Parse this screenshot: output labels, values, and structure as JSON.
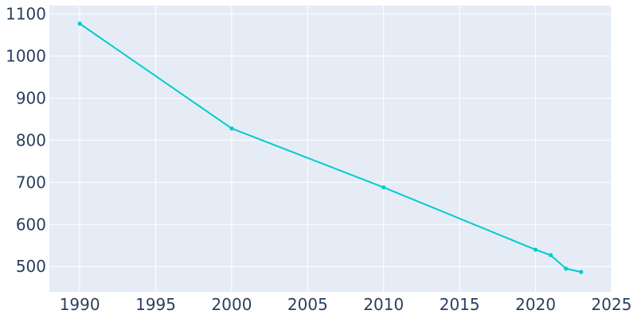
{
  "chart_data": {
    "type": "line",
    "title": "",
    "xlabel": "",
    "ylabel": "",
    "x": [
      1990,
      2000,
      2010,
      2020,
      2021,
      2022,
      2023
    ],
    "series": [
      {
        "values": [
          1077,
          828,
          688,
          540,
          527,
          495,
          487
        ],
        "color": "#00cccc"
      }
    ],
    "xlim": [
      1988,
      2025
    ],
    "ylim": [
      440,
      1120
    ],
    "x_ticks": [
      1990,
      1995,
      2000,
      2005,
      2010,
      2015,
      2020,
      2025
    ],
    "y_ticks": [
      500,
      600,
      700,
      800,
      900,
      1000,
      1100
    ],
    "grid": true,
    "legend": "none",
    "plot_background": "#e5ecf6",
    "grid_color": "#ffffff",
    "tick_label_color": "#2a3f5f"
  }
}
